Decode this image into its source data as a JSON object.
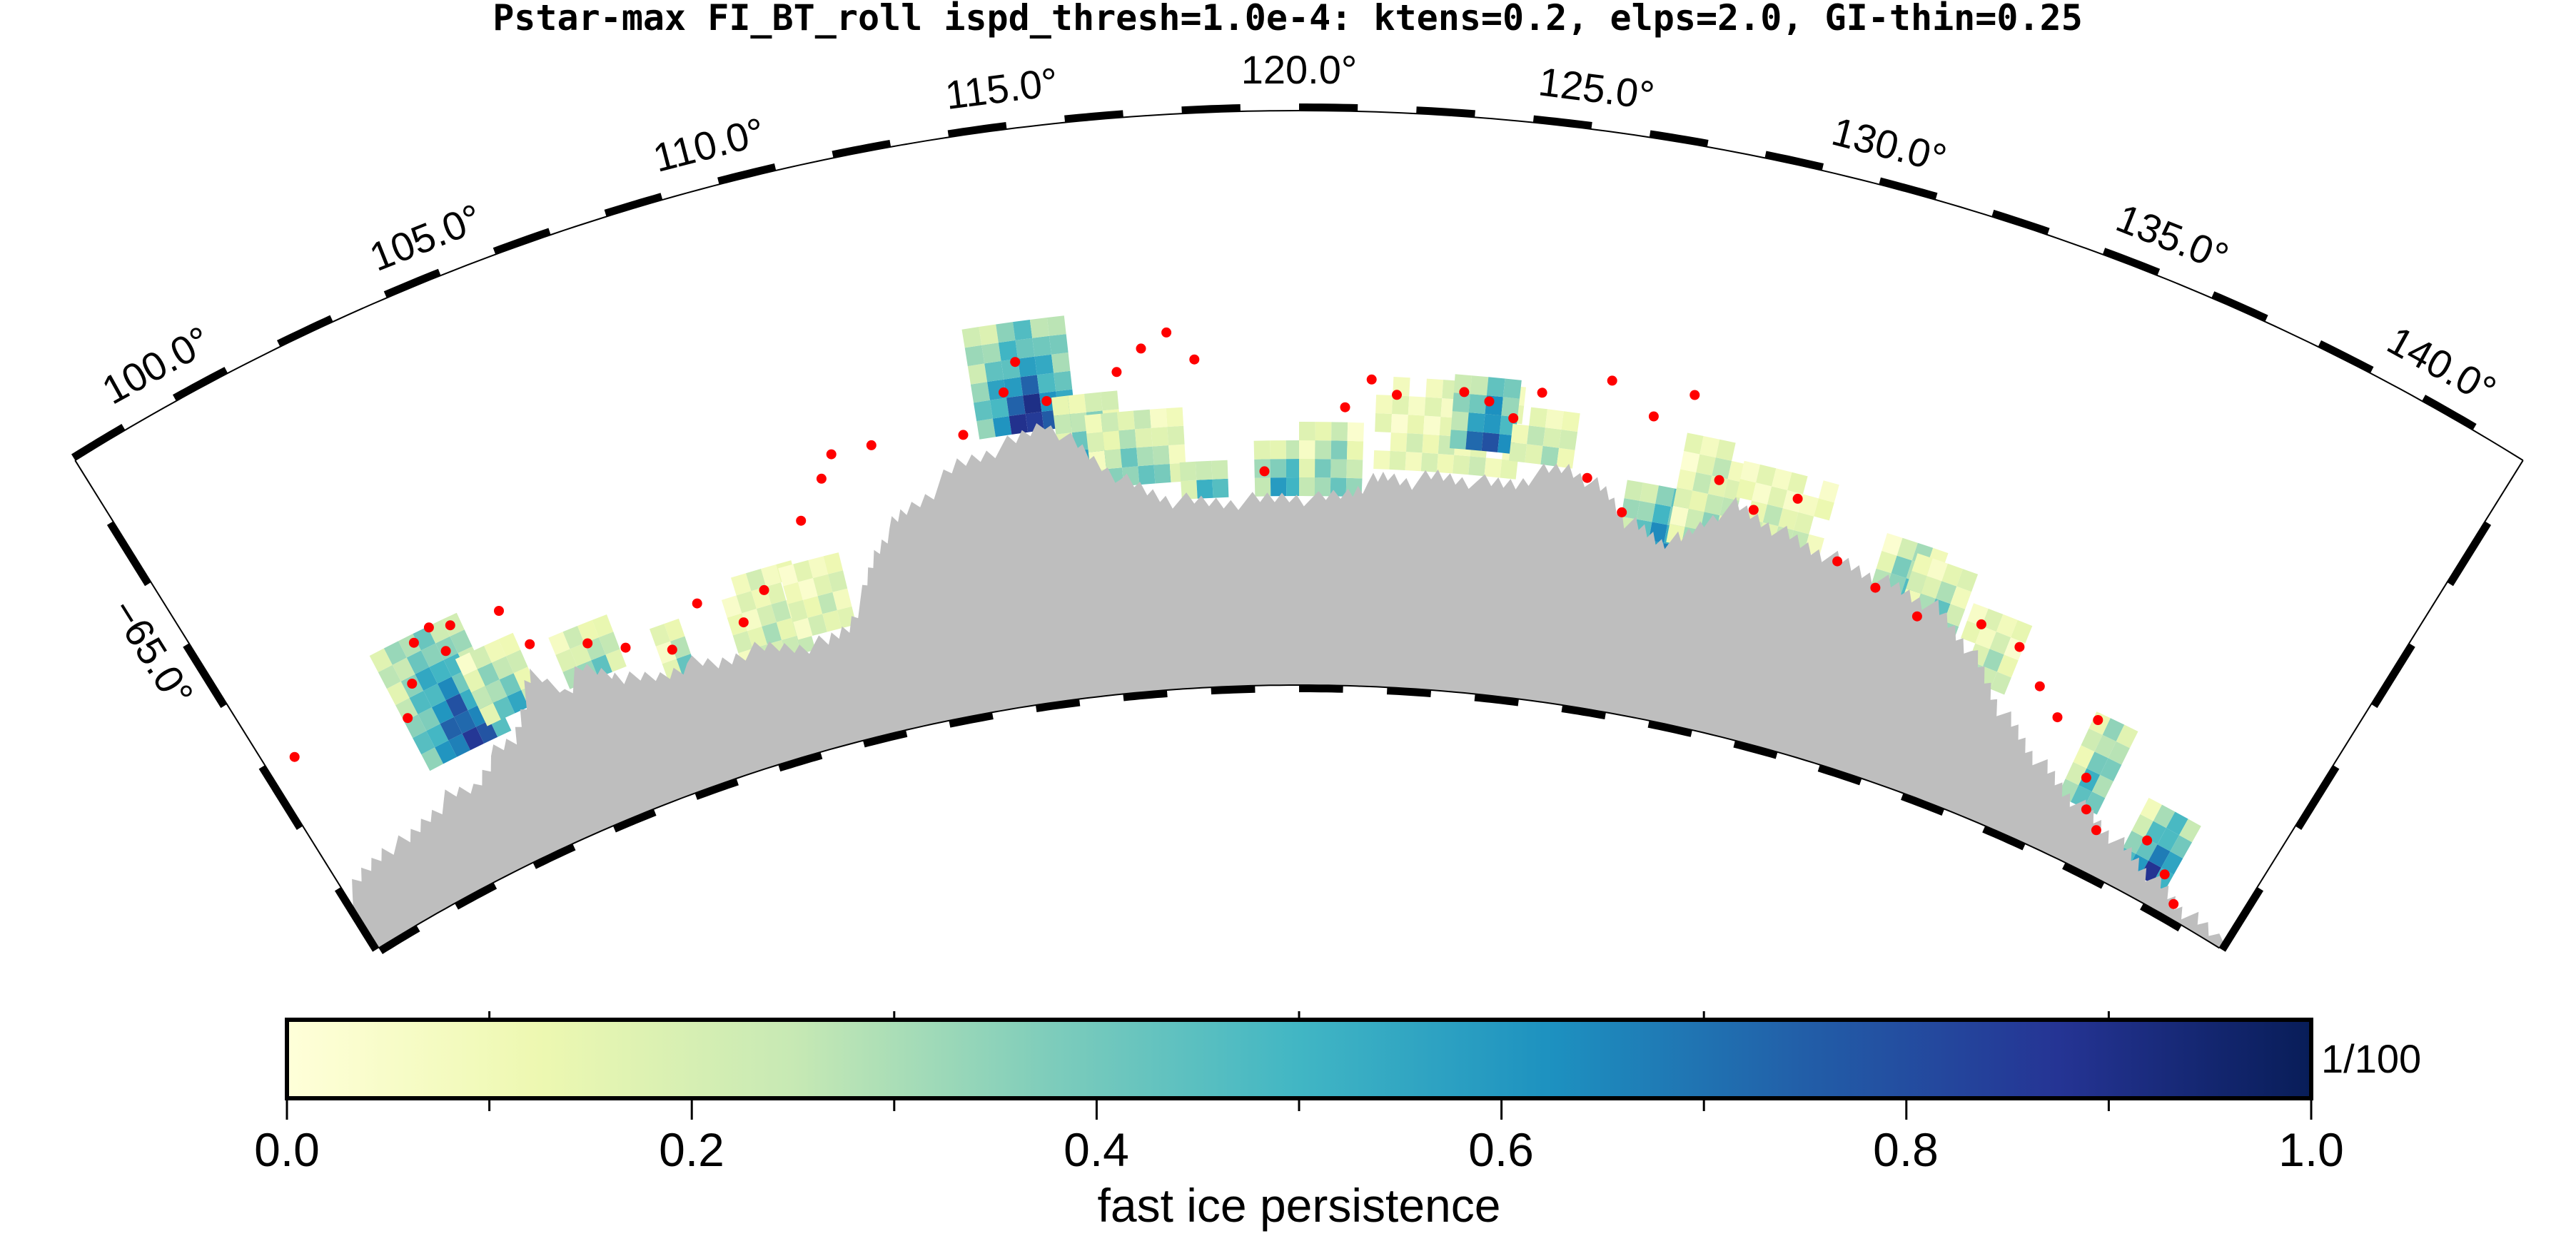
{
  "title": "Pstar-max FI_BT_roll ispd_thresh=1.0e-4: ktens=0.2, elps=2.0, GI-thin=0.25",
  "longitude_labels": [
    "100.0°",
    "105.0°",
    "110.0°",
    "115.0°",
    "120.0°",
    "125.0°",
    "130.0°",
    "135.0°",
    "140.0°"
  ],
  "latitude_label": "−65.0°",
  "colorbar": {
    "label": "fast ice persistence",
    "unit": "1/100",
    "range": [
      0.0,
      1.0
    ],
    "tick_labels": [
      "0.0",
      "0.2",
      "0.4",
      "0.6",
      "0.8",
      "1.0"
    ],
    "palette": "YlGnBu",
    "colors": [
      "#ffffd9",
      "#edf8b1",
      "#c7e9b4",
      "#7fcdbb",
      "#41b6c4",
      "#1d91c0",
      "#225ea8",
      "#253494",
      "#081d58"
    ]
  },
  "colors": {
    "land": "#bebebe",
    "grounded_iceberg_dots": "#ff0000",
    "frame": "#000000"
  }
}
